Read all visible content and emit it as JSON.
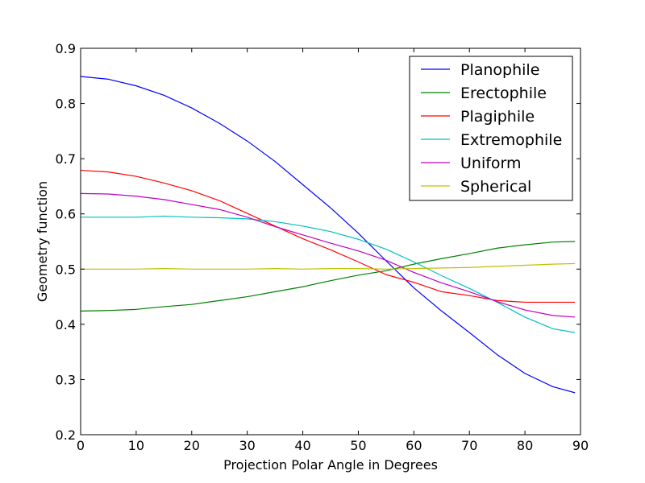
{
  "chart_data": {
    "type": "line",
    "title": "",
    "xlabel": "Projection Polar Angle in Degrees",
    "ylabel": "Geometry function",
    "xlim": [
      0,
      90
    ],
    "ylim": [
      0.2,
      0.9
    ],
    "xticks": [
      0,
      10,
      20,
      30,
      40,
      50,
      60,
      70,
      80,
      90
    ],
    "yticks": [
      0.2,
      0.3,
      0.4,
      0.5,
      0.6,
      0.7,
      0.8,
      0.9
    ],
    "xtick_labels": [
      "0",
      "10",
      "20",
      "30",
      "40",
      "50",
      "60",
      "70",
      "80",
      "90"
    ],
    "ytick_labels": [
      "0.2",
      "0.3",
      "0.4",
      "0.5",
      "0.6",
      "0.7",
      "0.8",
      "0.9"
    ],
    "grid": false,
    "legend_position": "top-right",
    "x": [
      0,
      5,
      10,
      15,
      20,
      25,
      30,
      35,
      40,
      45,
      50,
      55,
      60,
      65,
      70,
      75,
      80,
      85,
      89
    ],
    "series": [
      {
        "name": "Planophile",
        "color": "#0000ff",
        "values": [
          0.849,
          0.844,
          0.832,
          0.815,
          0.792,
          0.764,
          0.732,
          0.695,
          0.653,
          0.611,
          0.565,
          0.515,
          0.466,
          0.424,
          0.385,
          0.345,
          0.311,
          0.287,
          0.276
        ]
      },
      {
        "name": "Erectophile",
        "color": "#008000",
        "values": [
          0.424,
          0.425,
          0.427,
          0.432,
          0.436,
          0.443,
          0.45,
          0.459,
          0.468,
          0.479,
          0.489,
          0.497,
          0.509,
          0.519,
          0.528,
          0.538,
          0.544,
          0.549,
          0.55
        ]
      },
      {
        "name": "Plagiphile",
        "color": "#ff0000",
        "values": [
          0.679,
          0.676,
          0.668,
          0.656,
          0.642,
          0.624,
          0.601,
          0.578,
          0.555,
          0.535,
          0.513,
          0.49,
          0.476,
          0.459,
          0.452,
          0.443,
          0.44,
          0.44,
          0.44
        ]
      },
      {
        "name": "Extremophile",
        "color": "#00bfbf",
        "values": [
          0.594,
          0.594,
          0.594,
          0.596,
          0.594,
          0.593,
          0.591,
          0.586,
          0.578,
          0.568,
          0.554,
          0.536,
          0.513,
          0.488,
          0.465,
          0.44,
          0.413,
          0.392,
          0.385
        ]
      },
      {
        "name": "Uniform",
        "color": "#bf00bf",
        "values": [
          0.637,
          0.636,
          0.632,
          0.626,
          0.617,
          0.608,
          0.594,
          0.577,
          0.562,
          0.547,
          0.533,
          0.516,
          0.494,
          0.475,
          0.459,
          0.441,
          0.426,
          0.416,
          0.413
        ]
      },
      {
        "name": "Spherical",
        "color": "#bfbf00",
        "values": [
          0.5,
          0.5,
          0.5,
          0.501,
          0.5,
          0.5,
          0.5,
          0.501,
          0.5,
          0.501,
          0.501,
          0.5,
          0.501,
          0.502,
          0.503,
          0.505,
          0.507,
          0.509,
          0.51
        ]
      }
    ]
  }
}
